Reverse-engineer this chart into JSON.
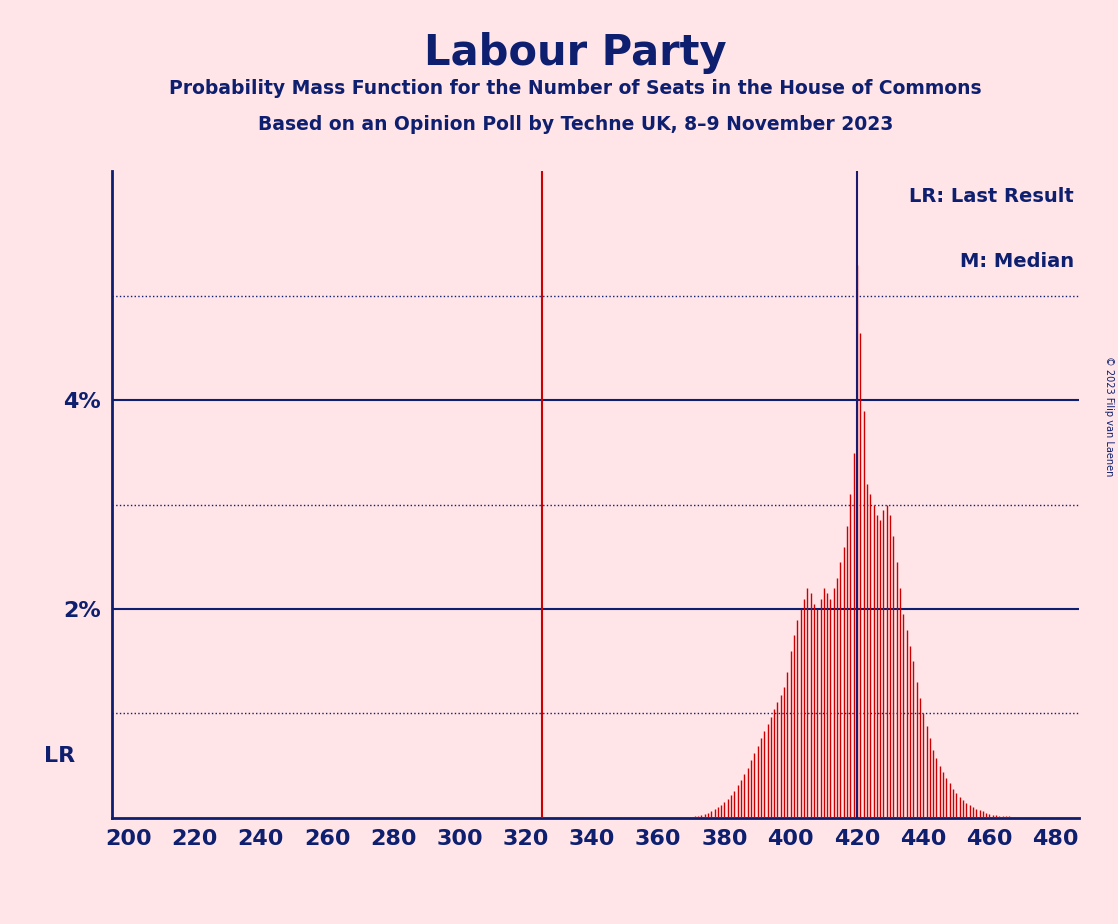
{
  "title": "Labour Party",
  "subtitle1": "Probability Mass Function for the Number of Seats in the House of Commons",
  "subtitle2": "Based on an Opinion Poll by Techne UK, 8–9 November 2023",
  "copyright": "© 2023 Filip van Laenen",
  "background_color": "#FFE4E8",
  "title_color": "#0D1F6E",
  "bar_color": "#CC0000",
  "lr_line_color": "#CC0000",
  "median_line_color": "#1A1A6E",
  "solid_grid_color": "#0D1F6E",
  "dotted_grid_color": "#0D1F6E",
  "axis_color": "#0D1F6E",
  "text_color": "#0D1F6E",
  "lr_value": 325,
  "median_value": 420,
  "xmin": 195,
  "xmax": 487,
  "ymin": 0,
  "ymax": 0.062,
  "xticks": [
    200,
    220,
    240,
    260,
    280,
    300,
    320,
    340,
    360,
    380,
    400,
    420,
    440,
    460,
    480
  ],
  "yticks_solid": [
    0.02,
    0.04
  ],
  "yticks_dotted": [
    0.01,
    0.03,
    0.05
  ],
  "ylabel_solid": [
    "2%",
    "4%"
  ],
  "legend_lr": "LR: Last Result",
  "legend_m": "M: Median",
  "pmf_seats": [
    370,
    371,
    372,
    373,
    374,
    375,
    376,
    377,
    378,
    379,
    380,
    381,
    382,
    383,
    384,
    385,
    386,
    387,
    388,
    389,
    390,
    391,
    392,
    393,
    394,
    395,
    396,
    397,
    398,
    399,
    400,
    401,
    402,
    403,
    404,
    405,
    406,
    407,
    408,
    409,
    410,
    411,
    412,
    413,
    414,
    415,
    416,
    417,
    418,
    419,
    420,
    421,
    422,
    423,
    424,
    425,
    426,
    427,
    428,
    429,
    430,
    431,
    432,
    433,
    434,
    435,
    436,
    437,
    438,
    439,
    440,
    441,
    442,
    443,
    444,
    445,
    446,
    447,
    448,
    449,
    450,
    451,
    452,
    453,
    454,
    455,
    456,
    457,
    458,
    459,
    460,
    461,
    462,
    463,
    464,
    465,
    466,
    467,
    468,
    469,
    470,
    471,
    472,
    473,
    474,
    475,
    476,
    477,
    478,
    479,
    480
  ],
  "pmf_probs": [
    0.0001,
    0.0002,
    0.0002,
    0.0003,
    0.0004,
    0.0005,
    0.0006,
    0.0008,
    0.001,
    0.0012,
    0.0015,
    0.0018,
    0.0022,
    0.0026,
    0.0031,
    0.0036,
    0.0042,
    0.0048,
    0.0055,
    0.0062,
    0.0069,
    0.0076,
    0.0083,
    0.009,
    0.0097,
    0.0104,
    0.0111,
    0.0118,
    0.0125,
    0.014,
    0.016,
    0.0175,
    0.019,
    0.02,
    0.021,
    0.022,
    0.0215,
    0.0205,
    0.02,
    0.021,
    0.022,
    0.0215,
    0.021,
    0.022,
    0.023,
    0.0245,
    0.026,
    0.028,
    0.031,
    0.035,
    0.053,
    0.0465,
    0.039,
    0.032,
    0.031,
    0.03,
    0.029,
    0.0285,
    0.0295,
    0.03,
    0.029,
    0.027,
    0.0245,
    0.022,
    0.0195,
    0.018,
    0.0165,
    0.015,
    0.013,
    0.0115,
    0.01,
    0.0088,
    0.0076,
    0.0065,
    0.0057,
    0.005,
    0.0044,
    0.0038,
    0.0033,
    0.0028,
    0.0024,
    0.002,
    0.0017,
    0.0014,
    0.0012,
    0.001,
    0.0008,
    0.0007,
    0.0006,
    0.0005,
    0.0004,
    0.0003,
    0.0003,
    0.0002,
    0.0002,
    0.0002,
    0.0002,
    0.0001,
    0.0001,
    0.0001,
    0.0001,
    0.0001,
    0.0001,
    0.0001,
    0.0001,
    0.0001,
    0.0001,
    0.0001,
    0.0001,
    0.0001,
    0.0001
  ]
}
